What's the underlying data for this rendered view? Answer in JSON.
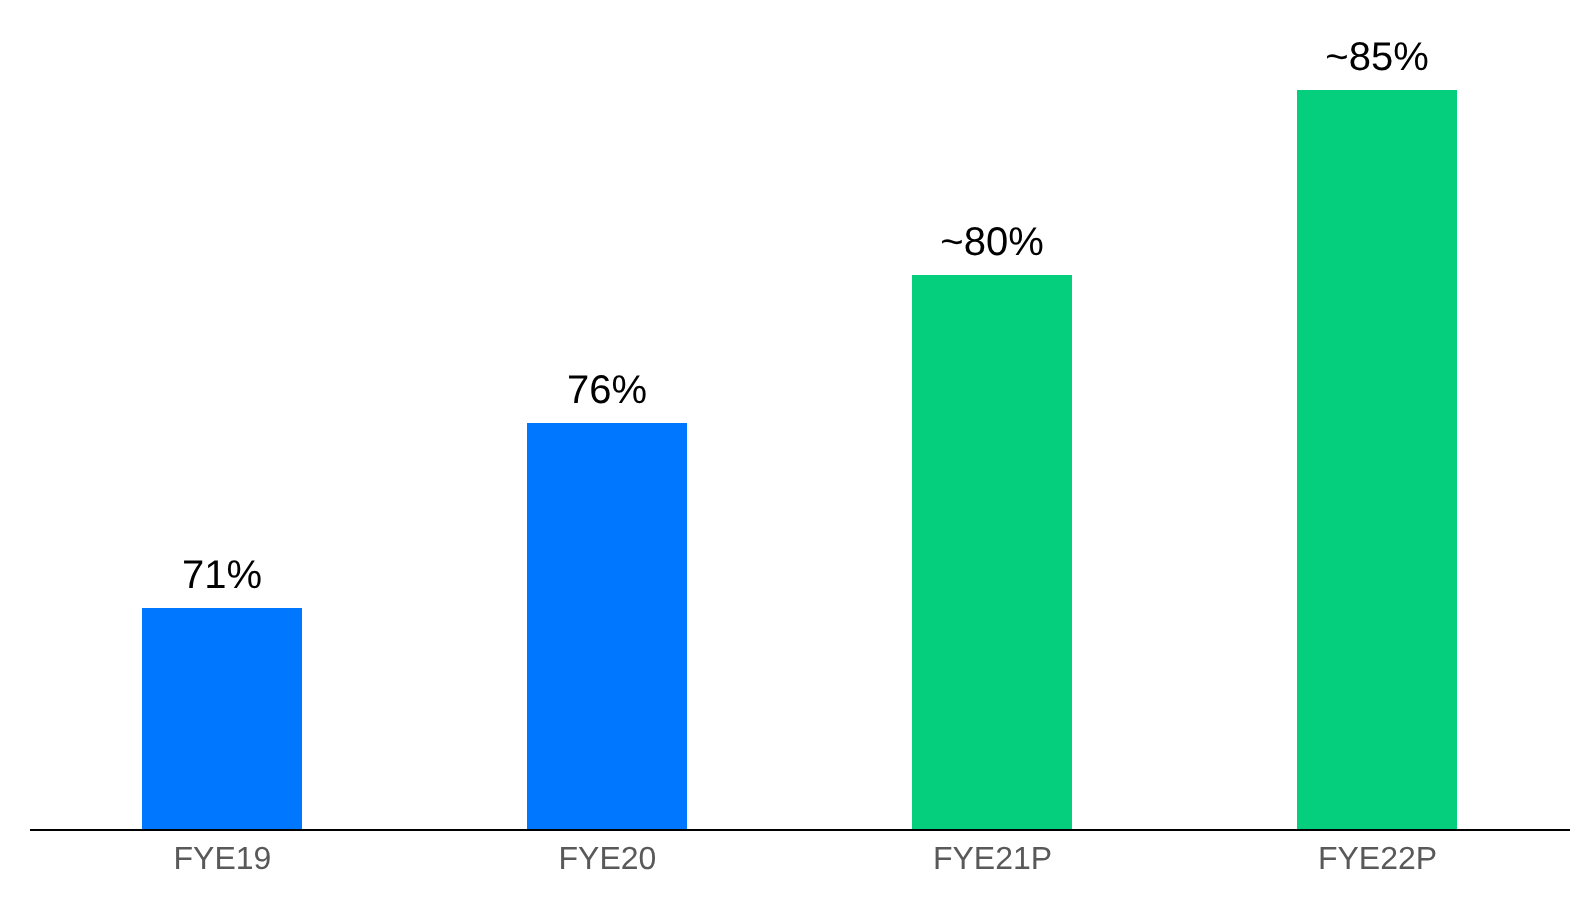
{
  "chart_data": {
    "type": "bar",
    "categories": [
      "FYE19",
      "FYE20",
      "FYE21P",
      "FYE22P"
    ],
    "values": [
      71,
      76,
      80,
      85
    ],
    "colors": [
      "#0077ff",
      "#0077ff",
      "#05cf7c",
      "#05cf7c"
    ],
    "value_labels": [
      "71%",
      "76%",
      "~80%",
      "~85%"
    ],
    "ylim": [
      65,
      85
    ]
  }
}
